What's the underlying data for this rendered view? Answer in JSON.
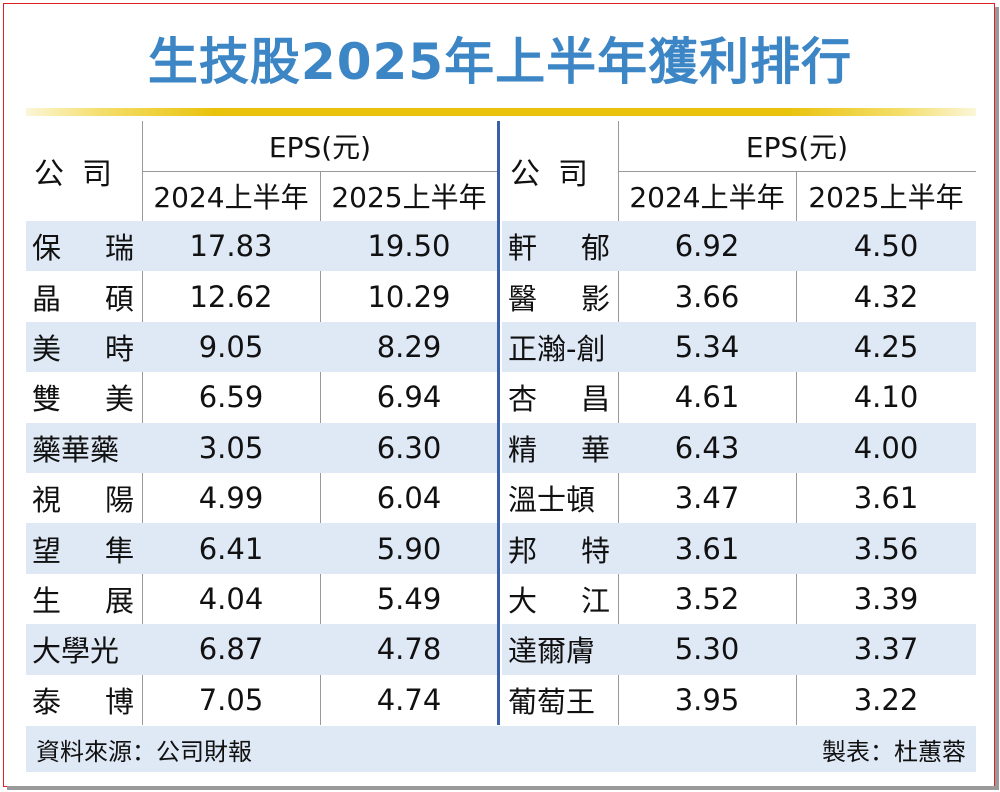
{
  "title": "生技股2025年上半年獲利排行",
  "header": {
    "company": "公司",
    "eps": "EPS(元)",
    "col_2024": "2024上半年",
    "col_2025": "2025上半年"
  },
  "left_rows": [
    {
      "name": "保瑞",
      "eps_2024": "17.83",
      "eps_2025": "19.50"
    },
    {
      "name": "晶碩",
      "eps_2024": "12.62",
      "eps_2025": "10.29"
    },
    {
      "name": "美時",
      "eps_2024": "9.05",
      "eps_2025": "8.29"
    },
    {
      "name": "雙美",
      "eps_2024": "6.59",
      "eps_2025": "6.94"
    },
    {
      "name": "藥華藥",
      "eps_2024": "3.05",
      "eps_2025": "6.30"
    },
    {
      "name": "視陽",
      "eps_2024": "4.99",
      "eps_2025": "6.04"
    },
    {
      "name": "望隼",
      "eps_2024": "6.41",
      "eps_2025": "5.90"
    },
    {
      "name": "生展",
      "eps_2024": "4.04",
      "eps_2025": "5.49"
    },
    {
      "name": "大學光",
      "eps_2024": "6.87",
      "eps_2025": "4.78"
    },
    {
      "name": "泰博",
      "eps_2024": "7.05",
      "eps_2025": "4.74"
    }
  ],
  "right_rows": [
    {
      "name": "軒郁",
      "eps_2024": "6.92",
      "eps_2025": "4.50"
    },
    {
      "name": "醫影",
      "eps_2024": "3.66",
      "eps_2025": "4.32"
    },
    {
      "name": "正瀚-創",
      "eps_2024": "5.34",
      "eps_2025": "4.25"
    },
    {
      "name": "杏昌",
      "eps_2024": "4.61",
      "eps_2025": "4.10"
    },
    {
      "name": "精華",
      "eps_2024": "6.43",
      "eps_2025": "4.00"
    },
    {
      "name": "溫士頓",
      "eps_2024": "3.47",
      "eps_2025": "3.61"
    },
    {
      "name": "邦特",
      "eps_2024": "3.61",
      "eps_2025": "3.56"
    },
    {
      "name": "大江",
      "eps_2024": "3.52",
      "eps_2025": "3.39"
    },
    {
      "name": "達爾膚",
      "eps_2024": "5.30",
      "eps_2025": "3.37"
    },
    {
      "name": "葡萄王",
      "eps_2024": "3.95",
      "eps_2025": "3.22"
    }
  ],
  "footer": {
    "source": "資料來源：公司財報",
    "maker": "製表：杜蕙蓉"
  },
  "colors": {
    "title": "#3d86c6",
    "row_shade": "#dfe8f5",
    "gold_bar": "#e9c20c",
    "divider": "#3b5fa8",
    "border": "#e02020"
  }
}
